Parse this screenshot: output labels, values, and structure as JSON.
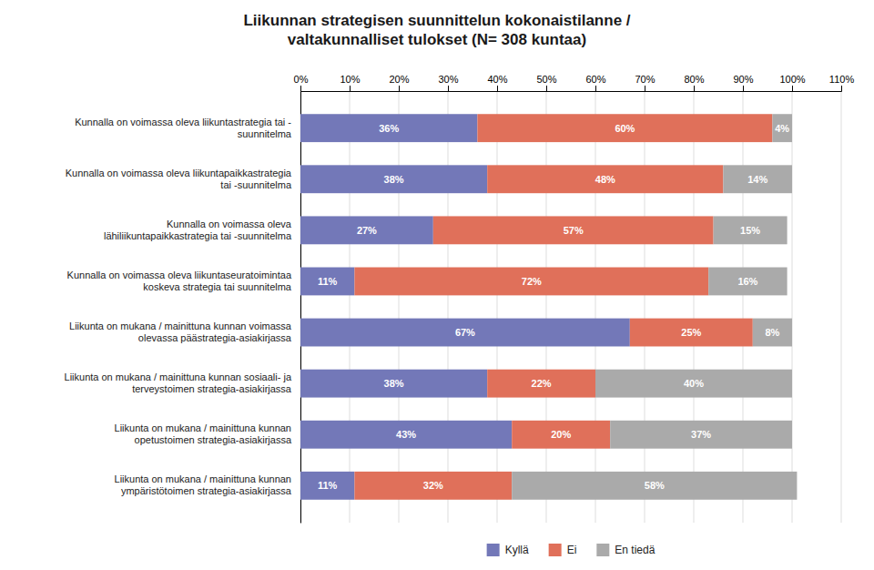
{
  "chart_data": {
    "type": "bar",
    "orientation": "horizontal",
    "stacked": true,
    "title": "Liikunnan strategisen suunnittelun kokonaistilanne /\nvaltakunnalliset tulokset (N= 308 kuntaa)",
    "categories": [
      "Kunnalla on voimassa oleva liikuntastrategia tai -\nsuunnitelma",
      "Kunnalla on voimassa oleva liikuntapaikkastrategia\ntai -suunnitelma",
      "Kunnalla on voimassa oleva\nlähiliikuntapaikkastrategia tai -suunnitelma",
      "Kunnalla on voimassa oleva liikuntaseuratoimintaa\nkoskeva strategia tai suunnitelma",
      "Liikunta on mukana / mainittuna kunnan voimassa\nolevassa päästrategia-asiakirjassa",
      "Liikunta on mukana / mainittuna kunnan sosiaali- ja\nterveystoimen strategia-asiakirjassa",
      "Liikunta on mukana / mainittuna kunnan\nopetustoimen strategia-asiakirjassa",
      "Liikunta on mukana / mainittuna kunnan\nympäristötoimen strategia-asiakirjassa"
    ],
    "series": [
      {
        "name": "Kyllä",
        "color": "#7378b8",
        "values": [
          36,
          38,
          27,
          11,
          67,
          38,
          43,
          11
        ],
        "value_labels": [
          "36%",
          "38%",
          "27%",
          "11%",
          "67%",
          "38%",
          "43%",
          "11%"
        ]
      },
      {
        "name": "Ei",
        "color": "#e0705a",
        "values": [
          60,
          48,
          57,
          72,
          25,
          22,
          20,
          32
        ],
        "value_labels": [
          "60%",
          "48%",
          "57%",
          "72%",
          "25%",
          "22%",
          "20%",
          "32%"
        ]
      },
      {
        "name": "En tiedä",
        "color": "#aaaaaa",
        "values": [
          4,
          14,
          15,
          16,
          8,
          40,
          37,
          58
        ],
        "value_labels": [
          "4%",
          "14%",
          "15%",
          "16%",
          "8%",
          "40%",
          "37%",
          "58%"
        ]
      }
    ],
    "xlim": [
      0,
      110
    ],
    "xticks": [
      {
        "value": 0,
        "label": "0%"
      },
      {
        "value": 10,
        "label": "10%"
      },
      {
        "value": 20,
        "label": "20%"
      },
      {
        "value": 30,
        "label": "30%"
      },
      {
        "value": 40,
        "label": "40%"
      },
      {
        "value": 50,
        "label": "50%"
      },
      {
        "value": 60,
        "label": "60%"
      },
      {
        "value": 70,
        "label": "70%"
      },
      {
        "value": 80,
        "label": "80%"
      },
      {
        "value": 90,
        "label": "90%"
      },
      {
        "value": 100,
        "label": "100%"
      },
      {
        "value": 110,
        "label": "110%"
      }
    ],
    "grid": true,
    "data_labels": true,
    "legend": "bottom"
  }
}
